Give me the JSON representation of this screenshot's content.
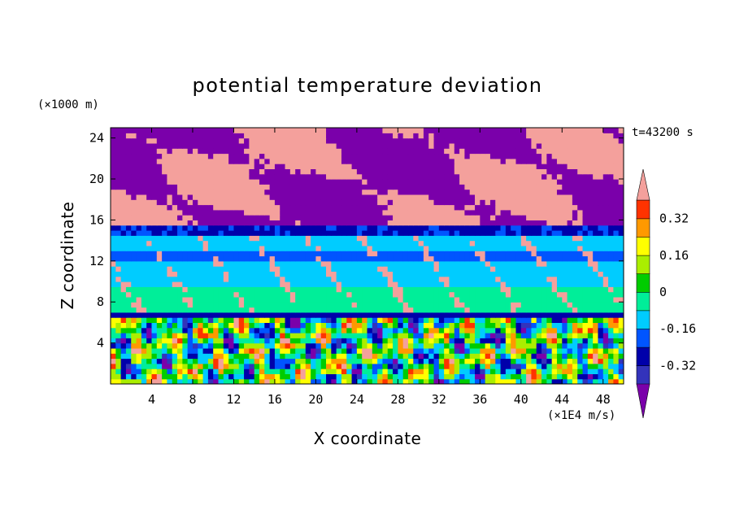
{
  "chart_data": {
    "type": "heatmap",
    "title": "potential temperature deviation",
    "xlabel": "X coordinate",
    "ylabel": "Z coordinate",
    "x_unit": "(×1E4 m/s)",
    "y_unit": "(×1000 m)",
    "time_label": "t=43200 s",
    "xlim": [
      0,
      50
    ],
    "ylim": [
      0,
      25
    ],
    "x_ticks": [
      4,
      8,
      12,
      16,
      20,
      24,
      28,
      32,
      36,
      40,
      44,
      48
    ],
    "y_ticks": [
      4,
      8,
      12,
      16,
      20,
      24
    ],
    "colorbar": {
      "levels": [
        -0.4,
        -0.32,
        -0.24,
        -0.16,
        -0.08,
        0,
        0.08,
        0.16,
        0.24,
        0.32,
        0.4
      ],
      "labels": [
        "0.32",
        "0.16",
        "0",
        "-0.16",
        "-0.32"
      ],
      "label_values": [
        0.32,
        0.16,
        0,
        -0.16,
        -0.32
      ],
      "colors": [
        "#5500aa",
        "#3333bb",
        "#0000aa",
        "#0055ff",
        "#00ccff",
        "#00ee99",
        "#00cc00",
        "#aaee00",
        "#ffff00",
        "#ff9900",
        "#ff3300",
        "#ff0000",
        "#f4a09c"
      ],
      "under_color": "#7a00aa",
      "over_color": "#f4a09c"
    },
    "layers": [
      {
        "z_range": [
          15.5,
          25
        ],
        "description": "upper layer",
        "dominant_values": [
          -0.4,
          0.4
        ]
      },
      {
        "z_range": [
          14.5,
          15.5
        ],
        "dominant_value": -0.24
      },
      {
        "z_range": [
          9.5,
          14.5
        ],
        "dominant_value": -0.12
      },
      {
        "z_range": [
          7,
          9.5
        ],
        "dominant_value": -0.04
      },
      {
        "z_range": [
          6.3,
          7
        ],
        "dominant_value": -0.3
      },
      {
        "z_range": [
          0,
          6.3
        ],
        "dominant_values": [
          -0.4,
          0.32
        ]
      }
    ]
  }
}
